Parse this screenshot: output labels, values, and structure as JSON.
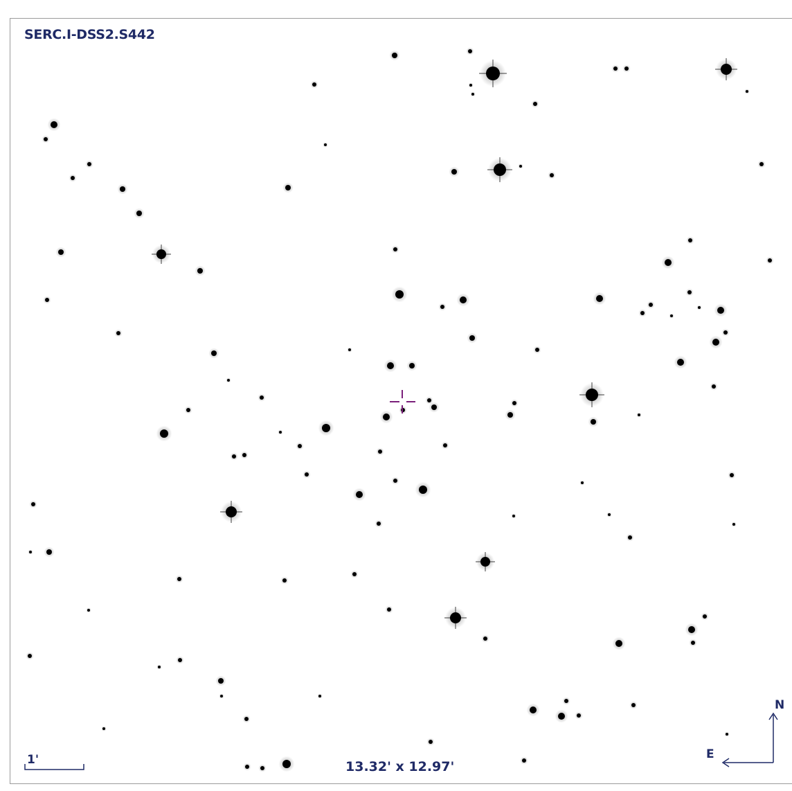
{
  "image": {
    "survey_label": "SERC.I-DSS2.S442",
    "field_of_view": "13.32' x 12.97'",
    "scale_bar_label": "1'",
    "compass": {
      "north": "N",
      "east": "E"
    },
    "colors": {
      "text": "#1f2a66",
      "marker": "#7a1f7a",
      "star": "#000000",
      "background": "#ffffff"
    }
  }
}
